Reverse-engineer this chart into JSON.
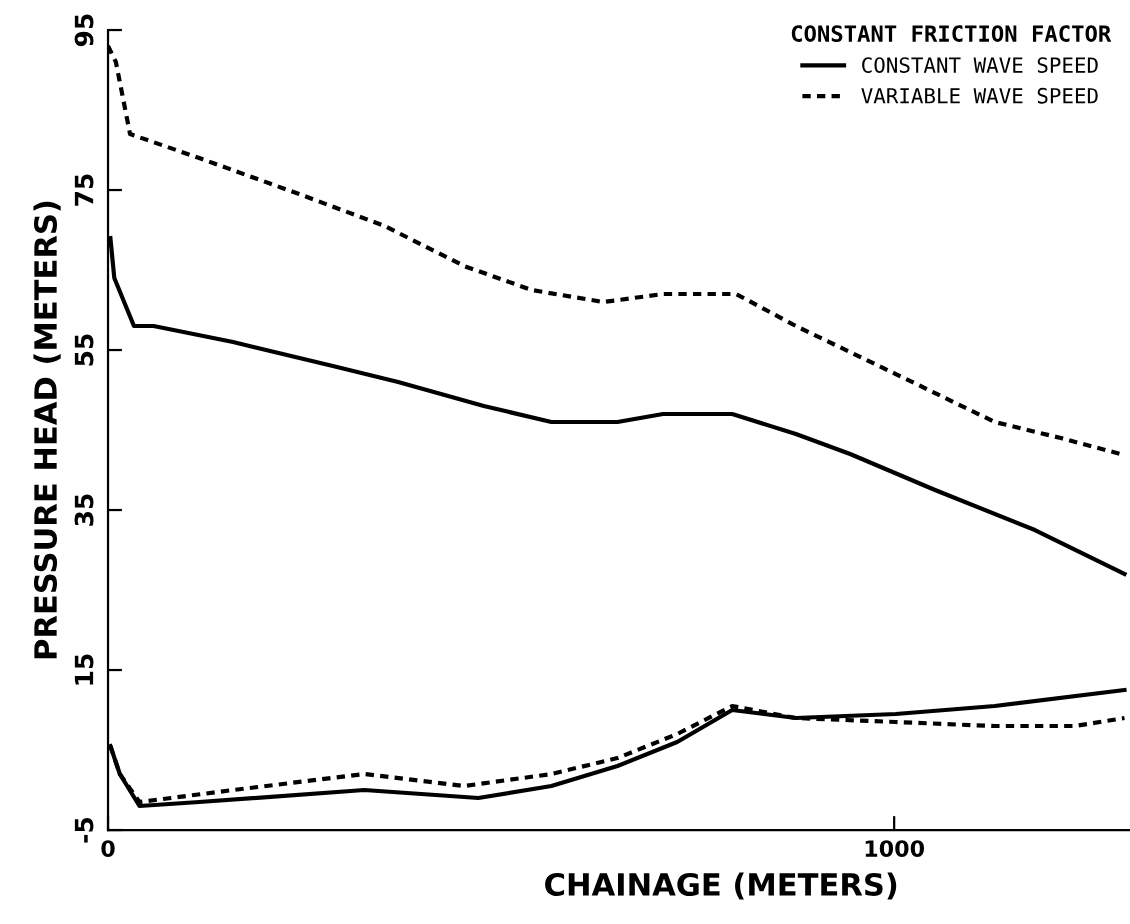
{
  "chart_data": {
    "type": "line",
    "xlabel": "CHAINAGE (METERS)",
    "ylabel": "PRESSURE HEAD (METERS)",
    "legend_title": "CONSTANT FRICTION FACTOR",
    "legend": "top right",
    "grid": false,
    "xlim": [
      0,
      1300
    ],
    "xticks": [
      0,
      1000
    ],
    "ylim": [
      -5,
      95
    ],
    "yticks": [
      95,
      75,
      55,
      35,
      15,
      -5
    ],
    "series": [
      {
        "name": "CONSTANT WAVE SPEED",
        "color": "#000000",
        "line_style": "solid",
        "x": [
          3,
          8,
          33,
          58,
          159,
          286,
          369,
          478,
          564,
          648,
          706,
          794,
          875,
          944,
          1052,
          1179,
          1293
        ],
        "values": [
          69,
          64,
          58,
          58,
          56,
          53,
          51,
          48,
          46,
          46,
          47,
          47,
          44.5,
          42,
          37.5,
          32.5,
          27
        ]
      },
      {
        "name": "VARIABLE WAVE SPEED",
        "color": "#000000",
        "line_style": "dashed",
        "x": [
          0,
          10,
          28,
          116,
          243,
          352,
          453,
          539,
          630,
          706,
          799,
          875,
          1002,
          1128,
          1212,
          1288
        ],
        "values": [
          93,
          91,
          82,
          79,
          74.5,
          70.5,
          65.5,
          62.5,
          61,
          62,
          62,
          58,
          52,
          46,
          44,
          42
        ]
      },
      {
        "color": "#000000",
        "line_style": "solid",
        "x": [
          3,
          15,
          40,
          116,
          326,
          471,
          564,
          648,
          724,
          794,
          875,
          1002,
          1128,
          1293
        ],
        "values": [
          5.5,
          2,
          -2,
          -1.5,
          0,
          -1,
          0.5,
          3,
          6,
          10,
          9,
          9.5,
          10.5,
          12.5
        ]
      },
      {
        "color": "#000000",
        "line_style": "dashed",
        "x": [
          3,
          15,
          40,
          159,
          326,
          453,
          564,
          648,
          724,
          794,
          875,
          1002,
          1128,
          1230,
          1293
        ],
        "values": [
          5.5,
          2,
          -1.5,
          0,
          2,
          0.5,
          2,
          4,
          7,
          10.5,
          9,
          8.5,
          8,
          8,
          9
        ]
      }
    ]
  }
}
